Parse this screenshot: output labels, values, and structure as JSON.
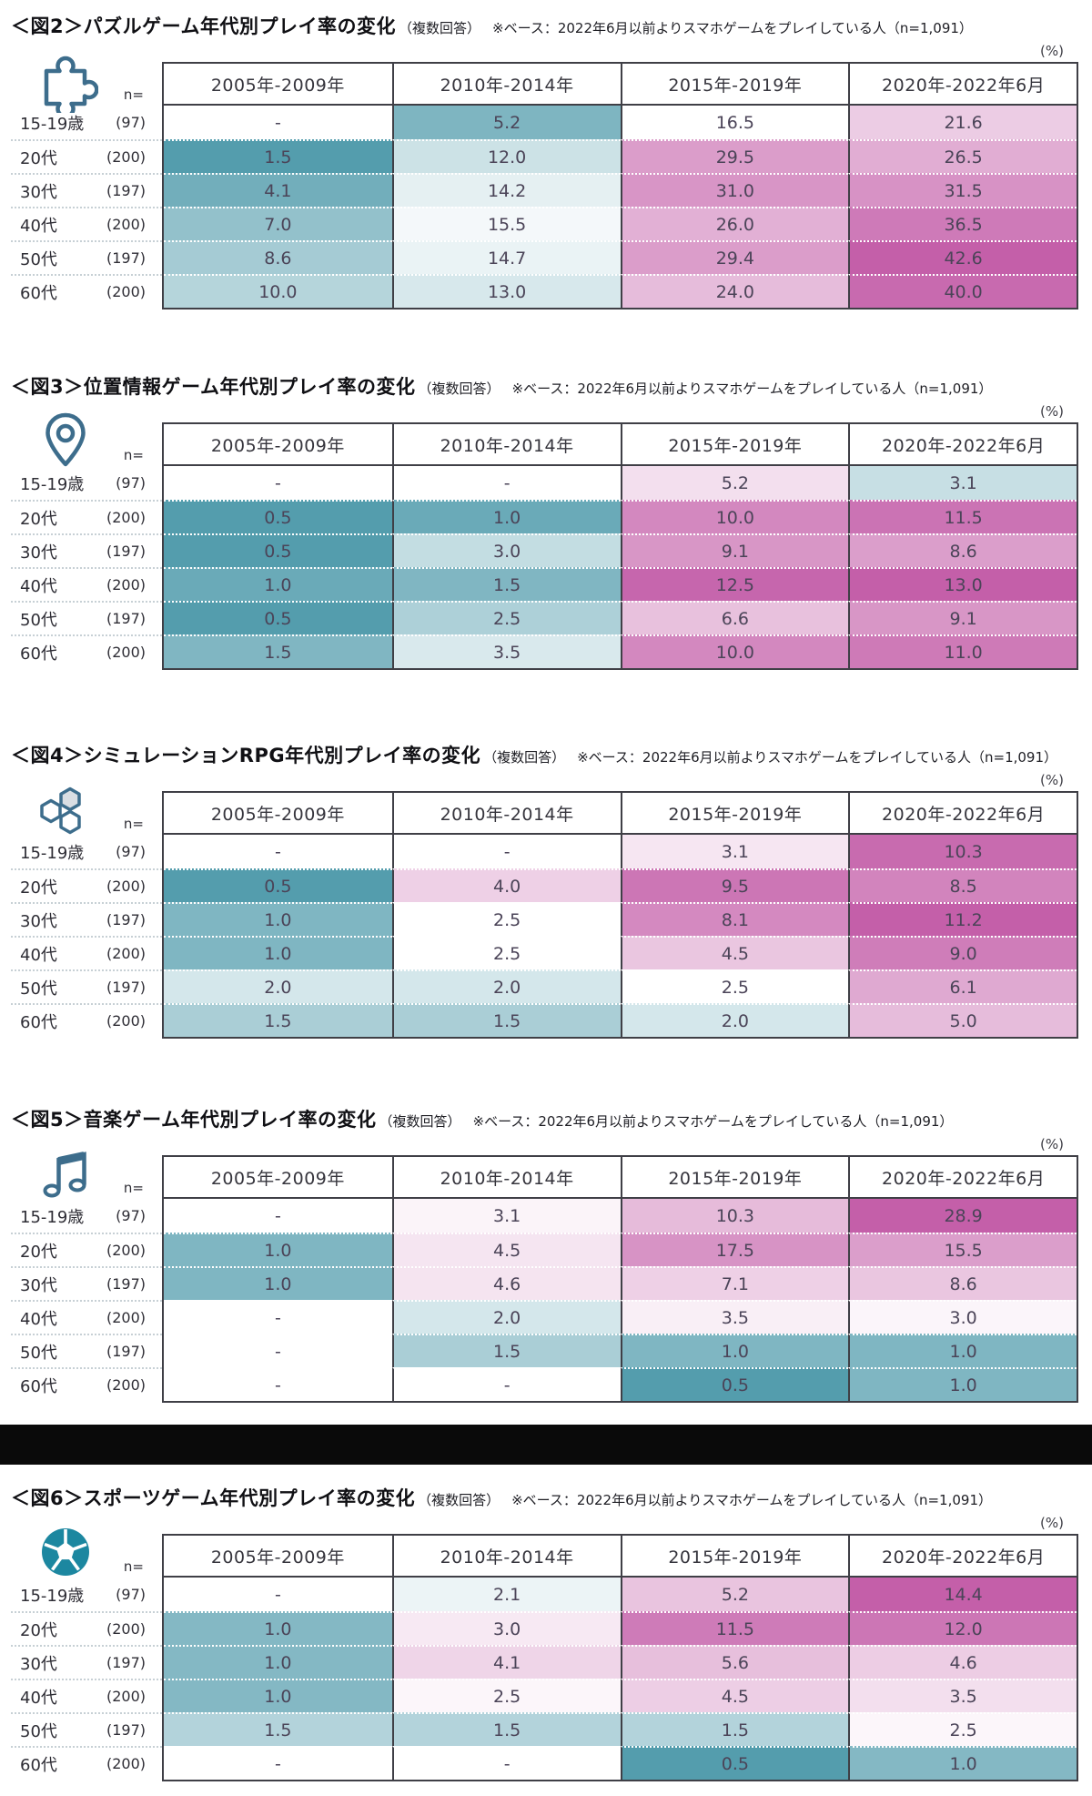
{
  "shared": {
    "n_label": "n=",
    "unit_label": "(%)",
    "columns": [
      "2005年-2009年",
      "2010年-2014年",
      "2015年-2019年",
      "2020年-2022年6月"
    ],
    "rows": [
      "15-19歳",
      "20代",
      "30代",
      "40代",
      "50代",
      "60代"
    ],
    "n": [
      "(97)",
      "(200)",
      "(197)",
      "(200)",
      "(197)",
      "(200)"
    ],
    "note": "（複数回答）",
    "base_note": "※ベース：2022年6月以前よりスマホゲームをプレイしている人（n=1,091）"
  },
  "colors": {
    "cell_teal": "#549DAD",
    "cell_pink": "#C45FA9",
    "cell_blank": "#FFFFFF",
    "table_border": "#3F3F46",
    "icon_stroke": "#3D6D8C",
    "hexagon_fill": "#D9DEE3",
    "soccer_fill": "#1C87A0",
    "divider": "#0A0A0A",
    "pink_gamma": 0.7
  },
  "chart_data": [
    {
      "type": "heatmap",
      "figure_tag": "＜図2＞",
      "title": "パズルゲーム年代別プレイ率の変化",
      "icon": "puzzle-icon",
      "columns": [
        "2005年-2009年",
        "2010年-2014年",
        "2015年-2019年",
        "2020年-2022年6月"
      ],
      "rows": [
        "15-19歳",
        "20代",
        "30代",
        "40代",
        "50代",
        "60代"
      ],
      "n": [
        "(97)",
        "(200)",
        "(197)",
        "(200)",
        "(197)",
        "(200)"
      ],
      "values": [
        [
          null,
          5.2,
          16.5,
          21.6
        ],
        [
          1.5,
          12.0,
          29.5,
          26.5
        ],
        [
          4.1,
          14.2,
          31.0,
          31.5
        ],
        [
          7.0,
          15.5,
          26.0,
          36.5
        ],
        [
          8.6,
          14.7,
          29.4,
          42.6
        ],
        [
          10.0,
          13.0,
          24.0,
          40.0
        ]
      ],
      "color_scale": {
        "mid": 16.5
      }
    },
    {
      "type": "heatmap",
      "figure_tag": "＜図3＞",
      "title": "位置情報ゲーム年代別プレイ率の変化",
      "icon": "location-pin-icon",
      "columns": [
        "2005年-2009年",
        "2010年-2014年",
        "2015年-2019年",
        "2020年-2022年6月"
      ],
      "rows": [
        "15-19歳",
        "20代",
        "30代",
        "40代",
        "50代",
        "60代"
      ],
      "n": [
        "(97)",
        "(200)",
        "(197)",
        "(200)",
        "(197)",
        "(200)"
      ],
      "values": [
        [
          null,
          null,
          5.2,
          3.1
        ],
        [
          0.5,
          1.0,
          10.0,
          11.5
        ],
        [
          0.5,
          3.0,
          9.1,
          8.6
        ],
        [
          1.0,
          1.5,
          12.5,
          13.0
        ],
        [
          0.5,
          2.5,
          6.6,
          9.1
        ],
        [
          1.5,
          3.5,
          10.0,
          11.0
        ]
      ],
      "color_scale": {
        "mid": 4.35
      }
    },
    {
      "type": "heatmap",
      "figure_tag": "＜図4＞",
      "title": "シミュレーションRPG年代別プレイ率の変化",
      "icon": "hexagons-icon",
      "columns": [
        "2005年-2009年",
        "2010年-2014年",
        "2015年-2019年",
        "2020年-2022年6月"
      ],
      "rows": [
        "15-19歳",
        "20代",
        "30代",
        "40代",
        "50代",
        "60代"
      ],
      "n": [
        "(97)",
        "(200)",
        "(197)",
        "(200)",
        "(197)",
        "(200)"
      ],
      "values": [
        [
          null,
          null,
          3.1,
          10.3
        ],
        [
          0.5,
          4.0,
          9.5,
          8.5
        ],
        [
          1.0,
          2.5,
          8.1,
          11.2
        ],
        [
          1.0,
          2.5,
          4.5,
          9.0
        ],
        [
          2.0,
          2.0,
          2.5,
          6.1
        ],
        [
          1.5,
          1.5,
          2.0,
          5.0
        ]
      ],
      "color_scale": {
        "mid": 2.5
      }
    },
    {
      "type": "heatmap",
      "figure_tag": "＜図5＞",
      "title": "音楽ゲーム年代別プレイ率の変化",
      "icon": "music-notes-icon",
      "columns": [
        "2005年-2009年",
        "2010年-2014年",
        "2015年-2019年",
        "2020年-2022年6月"
      ],
      "rows": [
        "15-19歳",
        "20代",
        "30代",
        "40代",
        "50代",
        "60代"
      ],
      "n": [
        "(97)",
        "(200)",
        "(197)",
        "(200)",
        "(197)",
        "(200)"
      ],
      "values": [
        [
          null,
          3.1,
          10.3,
          28.9
        ],
        [
          1.0,
          4.5,
          17.5,
          15.5
        ],
        [
          1.0,
          4.6,
          7.1,
          8.6
        ],
        [
          null,
          2.0,
          3.5,
          3.0
        ],
        [
          null,
          1.5,
          1.0,
          1.0
        ],
        [
          null,
          null,
          0.5,
          1.0
        ]
      ],
      "color_scale": {
        "mid": 2.5
      }
    },
    {
      "type": "heatmap",
      "figure_tag": "＜図6＞",
      "title": "スポーツゲーム年代別プレイ率の変化",
      "icon": "soccer-ball-icon",
      "columns": [
        "2005年-2009年",
        "2010年-2014年",
        "2015年-2019年",
        "2020年-2022年6月"
      ],
      "rows": [
        "15-19歳",
        "20代",
        "30代",
        "40代",
        "50代",
        "60代"
      ],
      "n": [
        "(97)",
        "(200)",
        "(197)",
        "(200)",
        "(197)",
        "(200)"
      ],
      "values": [
        [
          null,
          2.1,
          5.2,
          14.4
        ],
        [
          1.0,
          3.0,
          11.5,
          12.0
        ],
        [
          1.0,
          4.1,
          5.6,
          4.6
        ],
        [
          1.0,
          2.5,
          4.5,
          3.5
        ],
        [
          1.5,
          1.5,
          1.5,
          2.5
        ],
        [
          null,
          null,
          0.5,
          1.0
        ]
      ],
      "color_scale": {
        "mid": 2.3
      }
    }
  ]
}
